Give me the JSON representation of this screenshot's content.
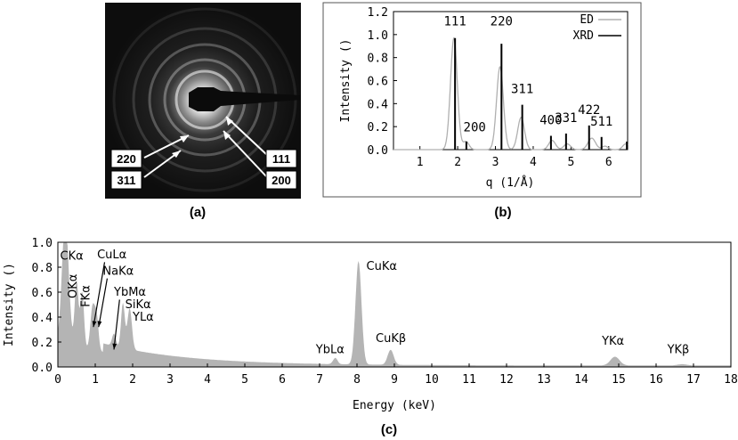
{
  "figure": {
    "panel_a": {
      "caption": "(a)",
      "ring_labels": [
        "220",
        "311",
        "111",
        "200"
      ]
    },
    "panel_b": {
      "caption": "(b)"
    },
    "panel_c": {
      "caption": "(c)"
    }
  },
  "chart_data": [
    {
      "id": "b",
      "type": "line",
      "xlabel": "q (1/Å)",
      "ylabel": "Intensity ()",
      "xlim": [
        0.3,
        6.5
      ],
      "ylim": [
        0,
        1.2
      ],
      "xticks": [
        "1",
        "2",
        "3",
        "4",
        "5",
        "6"
      ],
      "yticks": [
        "0.0",
        "0.2",
        "0.4",
        "0.6",
        "0.8",
        "1.0",
        "1.2"
      ],
      "legend_position": "top-right",
      "series": [
        {
          "name": "ED",
          "color": "#b0b0b0",
          "style": "gaussian-peaks",
          "peaks": [
            {
              "x": 1.9,
              "y": 0.97,
              "w": 0.09
            },
            {
              "x": 2.22,
              "y": 0.07,
              "w": 0.08
            },
            {
              "x": 3.12,
              "y": 0.72,
              "w": 0.09
            },
            {
              "x": 3.68,
              "y": 0.28,
              "w": 0.09
            },
            {
              "x": 4.5,
              "y": 0.08,
              "w": 0.09
            },
            {
              "x": 4.9,
              "y": 0.05,
              "w": 0.09
            },
            {
              "x": 5.55,
              "y": 0.1,
              "w": 0.1
            },
            {
              "x": 5.9,
              "y": 0.03,
              "w": 0.08
            },
            {
              "x": 6.45,
              "y": 0.05,
              "w": 0.08
            }
          ]
        },
        {
          "name": "XRD",
          "color": "#000000",
          "style": "sticks",
          "sticks": [
            {
              "x": 1.93,
              "y": 0.97
            },
            {
              "x": 2.23,
              "y": 0.07
            },
            {
              "x": 3.16,
              "y": 0.92
            },
            {
              "x": 3.71,
              "y": 0.39
            },
            {
              "x": 4.47,
              "y": 0.12
            },
            {
              "x": 4.87,
              "y": 0.14
            },
            {
              "x": 5.48,
              "y": 0.21
            },
            {
              "x": 5.81,
              "y": 0.11
            },
            {
              "x": 6.48,
              "y": 0.07
            }
          ]
        }
      ],
      "annotations": [
        {
          "text": "111",
          "x": 1.93,
          "y": 1.08
        },
        {
          "text": "200",
          "x": 2.45,
          "y": 0.16
        },
        {
          "text": "220",
          "x": 3.16,
          "y": 1.08
        },
        {
          "text": "311",
          "x": 3.71,
          "y": 0.49
        },
        {
          "text": "400",
          "x": 4.47,
          "y": 0.22
        },
        {
          "text": "331",
          "x": 4.87,
          "y": 0.24
        },
        {
          "text": "422",
          "x": 5.48,
          "y": 0.31
        },
        {
          "text": "511",
          "x": 5.81,
          "y": 0.21
        }
      ]
    },
    {
      "id": "c",
      "type": "area",
      "xlabel": "Energy (keV)",
      "ylabel": "Intensity ()",
      "xlim": [
        0,
        18
      ],
      "ylim": [
        0,
        1.0
      ],
      "xticks": [
        "0",
        "1",
        "2",
        "3",
        "4",
        "5",
        "6",
        "7",
        "8",
        "9",
        "10",
        "11",
        "12",
        "13",
        "14",
        "15",
        "16",
        "17",
        "18"
      ],
      "yticks": [
        "0.0",
        "0.2",
        "0.4",
        "0.6",
        "0.8",
        "1.0"
      ],
      "color": "#b4b4b4",
      "peaks": [
        {
          "x": 0.2,
          "y": 1.0,
          "w": 0.09
        },
        {
          "x": 0.5,
          "y": 0.53,
          "w": 0.05
        },
        {
          "x": 0.65,
          "y": 0.45,
          "w": 0.05
        },
        {
          "x": 0.93,
          "y": 0.35,
          "w": 0.06
        },
        {
          "x": 1.04,
          "y": 0.25,
          "w": 0.05
        },
        {
          "x": 1.5,
          "y": 0.1,
          "w": 0.05
        },
        {
          "x": 1.74,
          "y": 0.36,
          "w": 0.05
        },
        {
          "x": 1.92,
          "y": 0.33,
          "w": 0.06
        },
        {
          "x": 7.42,
          "y": 0.05,
          "w": 0.06
        },
        {
          "x": 8.04,
          "y": 0.83,
          "w": 0.08
        },
        {
          "x": 8.9,
          "y": 0.12,
          "w": 0.08
        },
        {
          "x": 14.9,
          "y": 0.07,
          "w": 0.12
        },
        {
          "x": 16.7,
          "y": 0.01,
          "w": 0.12
        }
      ],
      "labels": [
        {
          "text": "CKα",
          "x": 0.06,
          "y": 0.86
        },
        {
          "text": "OKα",
          "x": 0.5,
          "y": 0.55,
          "rotate": -90
        },
        {
          "text": "FKα",
          "x": 0.85,
          "y": 0.48,
          "rotate": -90
        },
        {
          "text": "CuLα",
          "x": 1.05,
          "y": 0.87
        },
        {
          "text": "NaKα",
          "x": 1.2,
          "y": 0.74
        },
        {
          "text": "YbMα",
          "x": 1.5,
          "y": 0.57
        },
        {
          "text": "SiKα",
          "x": 1.8,
          "y": 0.47
        },
        {
          "text": "YLα",
          "x": 2.0,
          "y": 0.37
        },
        {
          "text": "YbLα",
          "x": 6.9,
          "y": 0.11
        },
        {
          "text": "CuKα",
          "x": 8.25,
          "y": 0.78
        },
        {
          "text": "CuKβ",
          "x": 8.5,
          "y": 0.2
        },
        {
          "text": "YKα",
          "x": 14.55,
          "y": 0.18
        },
        {
          "text": "YKβ",
          "x": 16.3,
          "y": 0.11
        }
      ]
    }
  ]
}
